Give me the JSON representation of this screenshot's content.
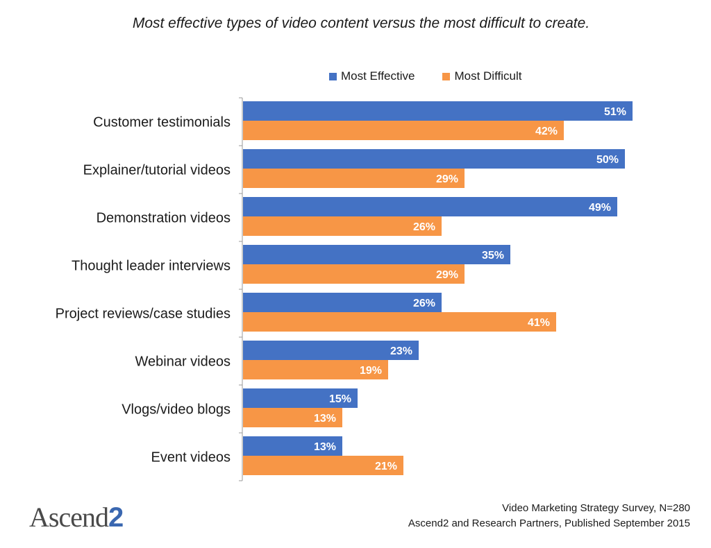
{
  "chart_data": {
    "type": "bar",
    "orientation": "horizontal",
    "title": "Most effective types of video content versus the most difficult to create.",
    "categories": [
      "Customer testimonials",
      "Explainer/tutorial videos",
      "Demonstration videos",
      "Thought leader interviews",
      "Project reviews/case studies",
      "Webinar videos",
      "Vlogs/video blogs",
      "Event videos"
    ],
    "series": [
      {
        "name": "Most Effective",
        "color": "#4472c4",
        "values": [
          51,
          50,
          49,
          35,
          26,
          23,
          15,
          13
        ],
        "labels": [
          "51%",
          "50%",
          "49%",
          "35%",
          "26%",
          "23%",
          "15%",
          "13%"
        ]
      },
      {
        "name": "Most Difficult",
        "color": "#f79646",
        "values": [
          42,
          29,
          26,
          29,
          41,
          19,
          13,
          21
        ],
        "labels": [
          "42%",
          "29%",
          "26%",
          "29%",
          "41%",
          "19%",
          "13%",
          "21%"
        ]
      }
    ],
    "unit": "%",
    "legend_position": "top"
  },
  "footer": {
    "line1": "Video Marketing Strategy Survey, N=280",
    "line2": "Ascend2 and Research Partners, Published September 2015"
  },
  "logo": {
    "text_main": "Ascend",
    "text_accent": "2"
  }
}
